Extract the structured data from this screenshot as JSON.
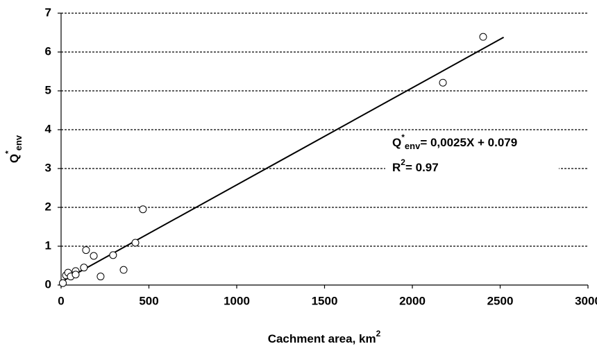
{
  "chart_data": {
    "type": "scatter",
    "x_label": {
      "text": "Cachment area, km",
      "sup": "2"
    },
    "y_label": {
      "base": "Q",
      "sup": "*",
      "sub": "env"
    },
    "equation": {
      "base": "Q",
      "sup": "*",
      "sub": "env",
      "rest": "= 0,0025X + 0.079"
    },
    "r_squared": {
      "base": "R",
      "sup": "2",
      "rest": "= 0.97"
    },
    "x": [
      10,
      28,
      40,
      55,
      83,
      83,
      130,
      142,
      186,
      225,
      296,
      356,
      423,
      466,
      2174,
      2403
    ],
    "values": [
      0.05,
      0.25,
      0.32,
      0.22,
      0.36,
      0.27,
      0.45,
      0.9,
      0.75,
      0.22,
      0.77,
      0.39,
      1.09,
      1.95,
      5.21,
      6.39
    ],
    "trendline": {
      "x": [
        0,
        2520
      ],
      "values": [
        0.079,
        6.379
      ]
    },
    "xlim": [
      0,
      3000
    ],
    "xticks": [
      0,
      500,
      1000,
      1500,
      2000,
      2500,
      3000
    ],
    "ylim": [
      0,
      7
    ],
    "yticks": [
      0,
      1,
      2,
      3,
      4,
      5,
      6,
      7
    ],
    "grid": true
  }
}
